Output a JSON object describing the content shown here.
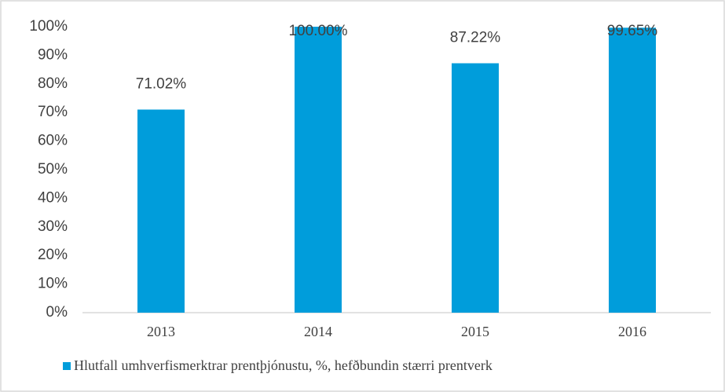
{
  "chart_data": {
    "type": "bar",
    "categories": [
      "2013",
      "2014",
      "2015",
      "2016"
    ],
    "series": [
      {
        "name": "Hlutfall umhverfismerktrar prentþjónustu, %, hefðbundin stærri prentverk",
        "color": "#009ddb",
        "values": [
          71.02,
          100,
          87.22,
          99.65
        ],
        "value_labels": [
          "71.02%",
          "100.00%",
          "87.22%",
          "99.65%"
        ]
      }
    ],
    "ylim": [
      0,
      100
    ],
    "yticks": [
      {
        "value": 0,
        "label": "0%"
      },
      {
        "value": 10,
        "label": "10%"
      },
      {
        "value": 20,
        "label": "20%"
      },
      {
        "value": 30,
        "label": "30%"
      },
      {
        "value": 40,
        "label": "40%"
      },
      {
        "value": 50,
        "label": "50%"
      },
      {
        "value": 60,
        "label": "60%"
      },
      {
        "value": 70,
        "label": "70%"
      },
      {
        "value": 80,
        "label": "80%"
      },
      {
        "value": 90,
        "label": "90%"
      },
      {
        "value": 100,
        "label": "100%"
      }
    ],
    "grid": false
  }
}
